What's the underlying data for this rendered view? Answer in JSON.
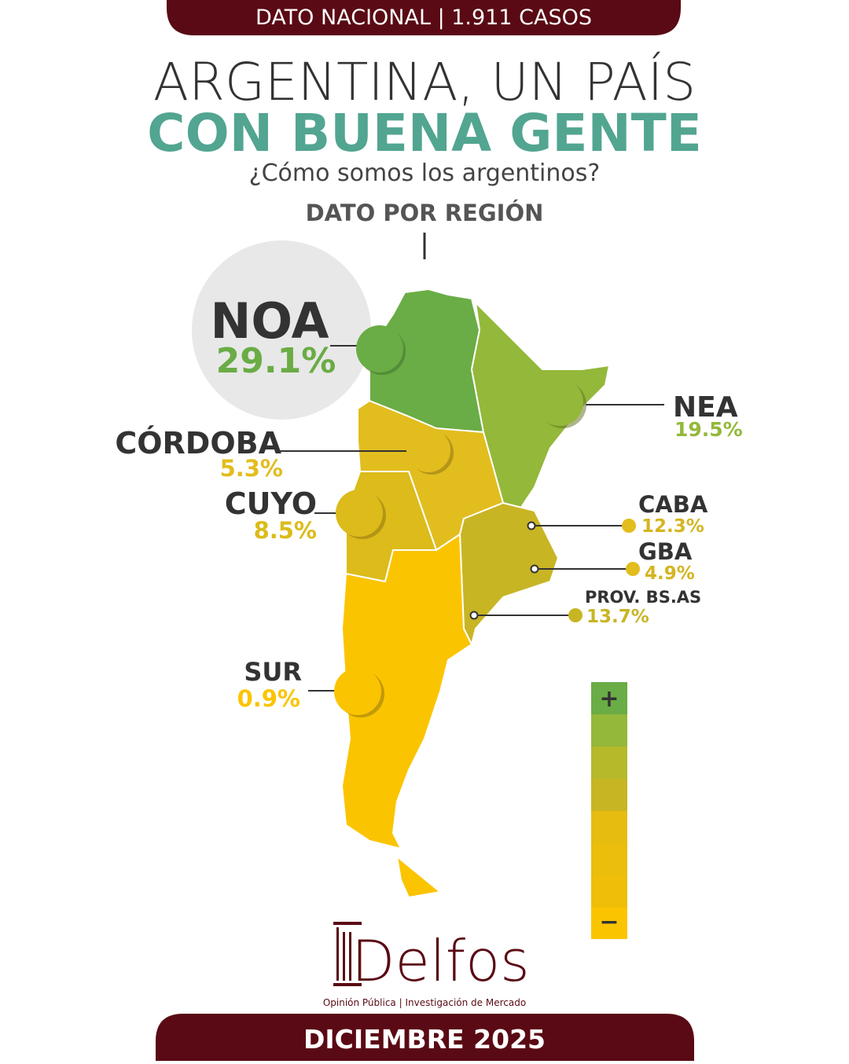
{
  "header": {
    "tag": "DATO NACIONAL | 1.911 CASOS",
    "title_line1": "ARGENTINA, UN PAÍS",
    "title_line2": "CON BUENA GENTE",
    "subtitle": "¿Cómo somos los argentinos?",
    "section": "DATO POR REGIÓN"
  },
  "regions": [
    {
      "name": "NOA",
      "value": "29.1%"
    },
    {
      "name": "NEA",
      "value": "19.5%"
    },
    {
      "name": "CÓRDOBA",
      "value": "5.3%"
    },
    {
      "name": "CUYO",
      "value": "8.5%"
    },
    {
      "name": "CABA",
      "value": "12.3%"
    },
    {
      "name": "GBA",
      "value": "4.9%"
    },
    {
      "name": "PROV. BS.AS",
      "value": "13.7%"
    },
    {
      "name": "SUR",
      "value": "0.9%"
    }
  ],
  "scale": {
    "top": "+",
    "bottom": "−"
  },
  "footer": {
    "brand": "Delfos",
    "tagline": "Opinión Pública | Investigación de Mercado",
    "date": "DICIEMBRE 2025"
  }
}
